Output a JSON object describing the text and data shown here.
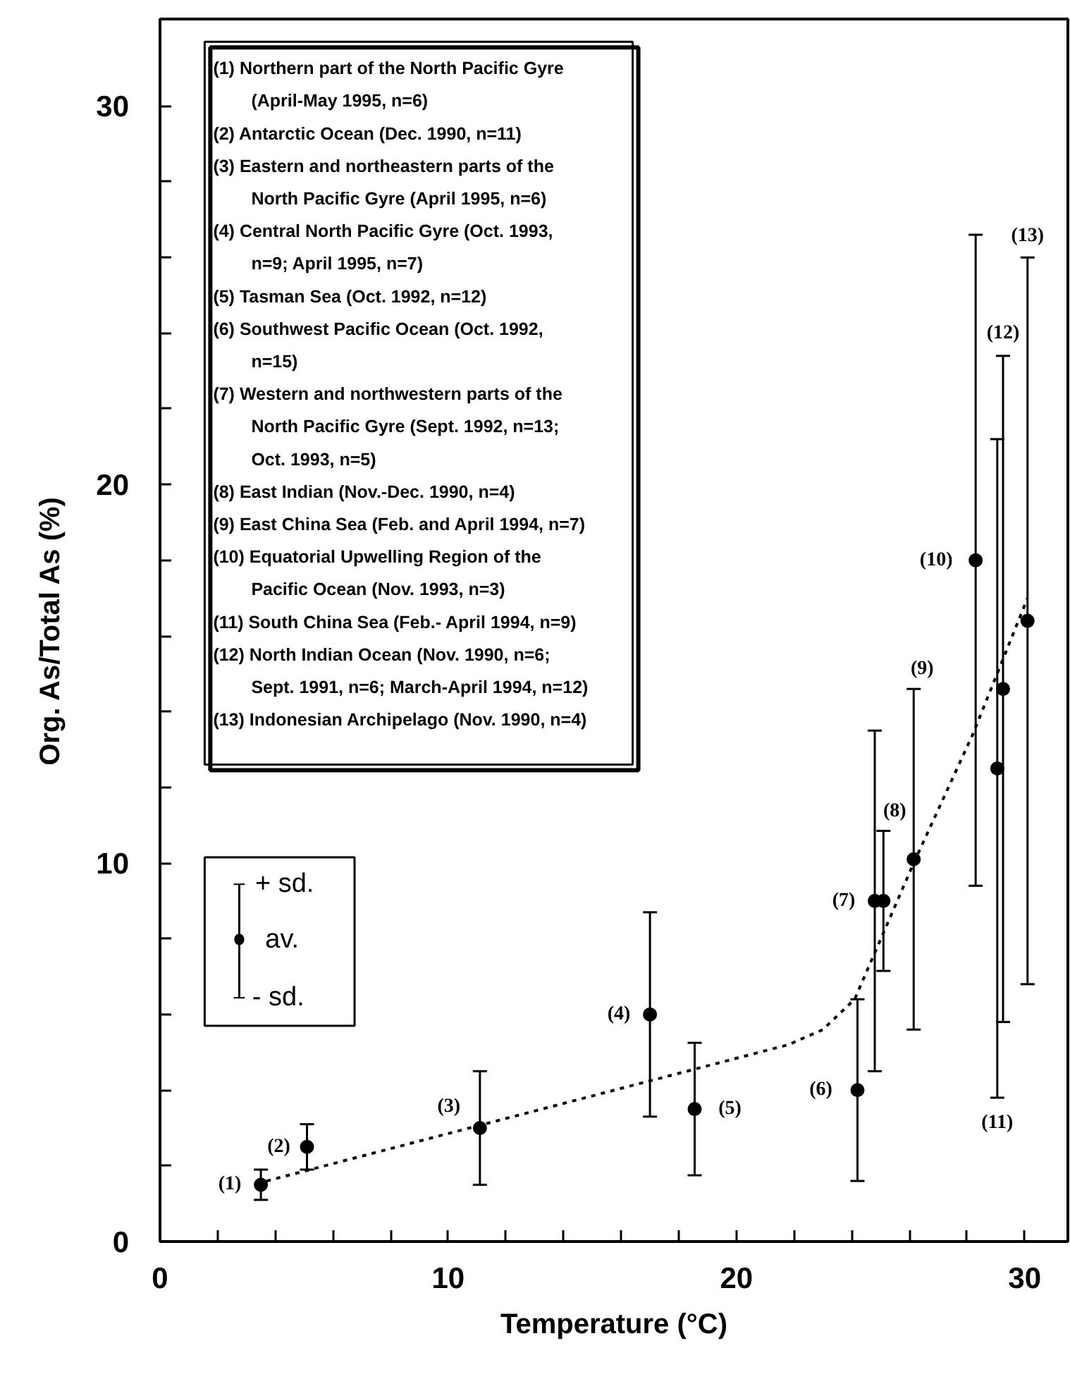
{
  "chart_data": {
    "type": "scatter",
    "xlabel": "Temperature (°C)",
    "ylabel": "Org. As/Total As (%)",
    "xlim": [
      0,
      31.5
    ],
    "ylim": [
      0,
      32.3
    ],
    "xticks": [
      0,
      {
        "value": 2,
        "label": null
      },
      {
        "value": 4,
        "label": null
      },
      {
        "value": 6,
        "label": null
      },
      {
        "value": 8,
        "label": null
      },
      10,
      {
        "value": 12,
        "label": null
      },
      {
        "value": 14,
        "label": null
      },
      {
        "value": 16,
        "label": null
      },
      {
        "value": 18,
        "label": null
      },
      20,
      {
        "value": 22,
        "label": null
      },
      {
        "value": 24,
        "label": null
      },
      {
        "value": 26,
        "label": null
      },
      {
        "value": 28,
        "label": null
      },
      30
    ],
    "yticks": [
      0,
      {
        "value": 2,
        "label": null
      },
      {
        "value": 4,
        "label": null
      },
      {
        "value": 6,
        "label": null
      },
      {
        "value": 8,
        "label": null
      },
      10,
      {
        "value": 12,
        "label": null
      },
      {
        "value": 14,
        "label": null
      },
      {
        "value": 16,
        "label": null
      },
      {
        "value": 18,
        "label": null
      },
      20,
      {
        "value": 22,
        "label": null
      },
      {
        "value": 24,
        "label": null
      },
      {
        "value": 26,
        "label": null
      },
      {
        "value": 28,
        "label": null
      },
      30
    ],
    "grid": false,
    "marker": "circle",
    "series": [
      {
        "color": "#000000",
        "x": [
          3.5,
          5.1,
          11.1,
          17.0,
          18.55,
          24.2,
          24.8,
          25.1,
          26.15,
          28.3,
          29.05,
          29.25,
          30.1
        ],
        "values": [
          1.5,
          2.5,
          3.0,
          6.0,
          3.5,
          4.0,
          9.0,
          9.0,
          10.1,
          18.0,
          12.5,
          14.6,
          16.4
        ],
        "errors": [
          0.4,
          0.6,
          1.5,
          2.7,
          1.75,
          2.4,
          4.5,
          1.85,
          4.5,
          8.6,
          8.7,
          8.8,
          9.6
        ]
      },
      {
        "type": "line",
        "color": "#000000",
        "line_style": "dashed",
        "marker": "none",
        "x": [
          3.7,
          21.8,
          23.0,
          24.1,
          26.15,
          28.2,
          30.1
        ],
        "values": [
          1.6,
          5.2,
          5.6,
          6.4,
          10.0,
          13.4,
          17.0
        ]
      }
    ],
    "annotations": [
      "(1) Northern part of the North Pacific Gyre\n(April-May 1995, n=6)",
      "(2) Antarctic Ocean (Dec. 1990, n=11)",
      "(3) Eastern and northeastern parts of the\nNorth Pacific Gyre (April 1995, n=6)",
      "(4) Central North Pacific Gyre (Oct. 1993,\nn=9; April 1995, n=7)",
      "(5) Tasman Sea (Oct. 1992, n=12)",
      "(6) Southwest Pacific Ocean (Oct. 1992,\nn=15)",
      "(7) Western and northwestern parts of the\nNorth Pacific Gyre (Sept. 1992, n=13;\nOct. 1993, n=5)",
      "(8) East Indian (Nov.-Dec. 1990, n=4)",
      "(9) East China Sea (Feb. and April 1994, n=7)",
      "(10) Equatorial Upwelling Region of the\nPacific Ocean (Nov. 1993, n=3)",
      "(11) South China Sea (Feb.- April 1994, n=9)",
      "(12) North Indian Ocean (Nov. 1990, n=6;\nSept. 1991, n=6; March-April 1994, n=12)",
      "(13) Indonesian Archipelago (Nov. 1990, n=4)",
      "+ sd.",
      "av.",
      "- sd.",
      {
        "text": "(1)",
        "x": 3.5,
        "y": 1.5
      },
      {
        "text": "(2)",
        "x": 5.1,
        "y": 2.5
      },
      {
        "text": "(3)",
        "x": 11.1,
        "y": 3.0
      },
      {
        "text": "(4)",
        "x": 17.0,
        "y": 6.0
      },
      {
        "text": "(5)",
        "x": 18.55,
        "y": 3.5
      },
      {
        "text": "(6)",
        "x": 24.2,
        "y": 4.0
      },
      {
        "text": "(7)",
        "x": 24.8,
        "y": 9.0
      },
      {
        "text": "(8)",
        "x": 25.1,
        "y": 10.85
      },
      {
        "text": "(9)",
        "x": 26.15,
        "y": 14.6
      },
      {
        "text": "(10)",
        "x": 28.3,
        "y": 18.0
      },
      {
        "text": "(11)",
        "x": 29.05,
        "y": 3.8
      },
      {
        "text": "(12)",
        "x": 29.25,
        "y": 23.4
      },
      {
        "text": "(13)",
        "x": 30.1,
        "y": 26.0
      }
    ]
  }
}
